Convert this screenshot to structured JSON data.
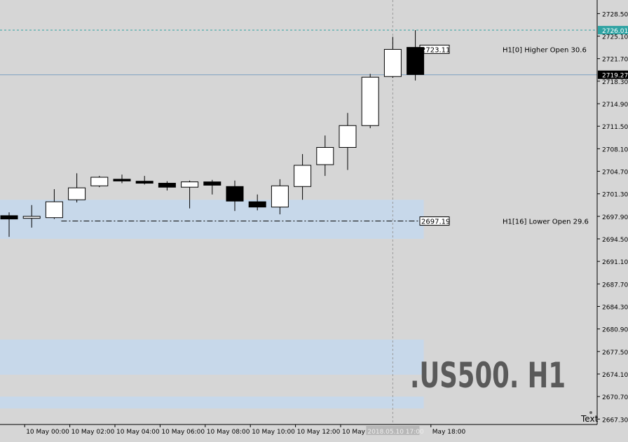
{
  "chart_data": {
    "type": "candlestick",
    "symbol_watermark": ".US500. H1",
    "colors": {
      "background": "#d6d6d6",
      "bull": "#ffffff",
      "bear": "#000000",
      "zone": "#c7d8ea",
      "axis": "#000000",
      "price_line": "#7c9fc0",
      "ask_line": "#30a3a3",
      "watermark": "#5a5a5a"
    },
    "ylim": [
      2666.8,
      2729.6
    ],
    "y_ticks": [
      "2728.50",
      "2725.10",
      "2721.70",
      "2718.30",
      "2714.90",
      "2711.50",
      "2708.10",
      "2704.70",
      "2701.30",
      "2697.90",
      "2694.50",
      "2691.10",
      "2687.70",
      "2684.30",
      "2680.90",
      "2677.50",
      "2674.10",
      "2670.70",
      "2667.30"
    ],
    "x_ticks": [
      {
        "label": "10 May 00:00",
        "idx": 1
      },
      {
        "label": "10 May 02:00",
        "idx": 3
      },
      {
        "label": "10 May 04:00",
        "idx": 5
      },
      {
        "label": "10 May 06:00",
        "idx": 7
      },
      {
        "label": "10 May 08:00",
        "idx": 9
      },
      {
        "label": "10 May 10:00",
        "idx": 11
      },
      {
        "label": "10 May 12:00",
        "idx": 13
      },
      {
        "label": "10 May 14:00",
        "idx": 15
      },
      {
        "label": "May 18:00",
        "idx": 19
      }
    ],
    "crosshair_label": "2018.05.10 17:00",
    "candles": [
      {
        "o": 2698.0,
        "h": 2698.5,
        "l": 2694.8,
        "c": 2697.5
      },
      {
        "o": 2697.6,
        "h": 2699.6,
        "l": 2696.2,
        "c": 2697.9
      },
      {
        "o": 2697.7,
        "h": 2702.0,
        "l": 2697.5,
        "c": 2700.1
      },
      {
        "o": 2700.4,
        "h": 2704.4,
        "l": 2700.0,
        "c": 2702.2
      },
      {
        "o": 2702.5,
        "h": 2704.0,
        "l": 2702.3,
        "c": 2703.8
      },
      {
        "o": 2703.5,
        "h": 2704.2,
        "l": 2702.9,
        "c": 2703.3
      },
      {
        "o": 2703.2,
        "h": 2704.0,
        "l": 2702.7,
        "c": 2702.9
      },
      {
        "o": 2702.9,
        "h": 2703.2,
        "l": 2701.8,
        "c": 2702.3
      },
      {
        "o": 2702.3,
        "h": 2703.3,
        "l": 2699.1,
        "c": 2703.1
      },
      {
        "o": 2703.1,
        "h": 2703.4,
        "l": 2701.2,
        "c": 2702.6
      },
      {
        "o": 2702.4,
        "h": 2703.3,
        "l": 2698.7,
        "c": 2700.2
      },
      {
        "o": 2700.1,
        "h": 2701.2,
        "l": 2698.8,
        "c": 2699.3
      },
      {
        "o": 2699.3,
        "h": 2703.5,
        "l": 2698.2,
        "c": 2702.5
      },
      {
        "o": 2702.4,
        "h": 2707.3,
        "l": 2700.4,
        "c": 2705.6
      },
      {
        "o": 2705.7,
        "h": 2710.1,
        "l": 2704.0,
        "c": 2708.3
      },
      {
        "o": 2708.3,
        "h": 2713.5,
        "l": 2704.9,
        "c": 2711.6
      },
      {
        "o": 2711.6,
        "h": 2719.4,
        "l": 2711.2,
        "c": 2718.9
      },
      {
        "o": 2719.0,
        "h": 2725.0,
        "l": 2718.8,
        "c": 2723.1
      },
      {
        "o": 2723.4,
        "h": 2726.0,
        "l": 2718.4,
        "c": 2719.3
      }
    ],
    "zones": [
      {
        "top": 2700.4,
        "bottom": 2694.5,
        "from_idx": 0,
        "to_idx": 18
      },
      {
        "top": 2679.3,
        "bottom": 2674.0,
        "from_idx": -1,
        "to_idx": 18
      },
      {
        "top": 2670.7,
        "bottom": 2668.9,
        "from_idx": -1,
        "to_idx": 18
      }
    ],
    "levels": [
      {
        "price": 2723.11,
        "label": "2723.11",
        "text": "H1[0] Higher Open 30.6",
        "style": "none"
      },
      {
        "price": 2697.19,
        "label": "2697.19",
        "text": "H1[16] Lower Open 29.6",
        "style": "dashdot"
      }
    ],
    "bid_line": {
      "price": 2719.27,
      "label": "2719.27"
    },
    "ask_line": {
      "price": 2726.01,
      "label": "2726.01"
    },
    "corner_text": "Text"
  }
}
